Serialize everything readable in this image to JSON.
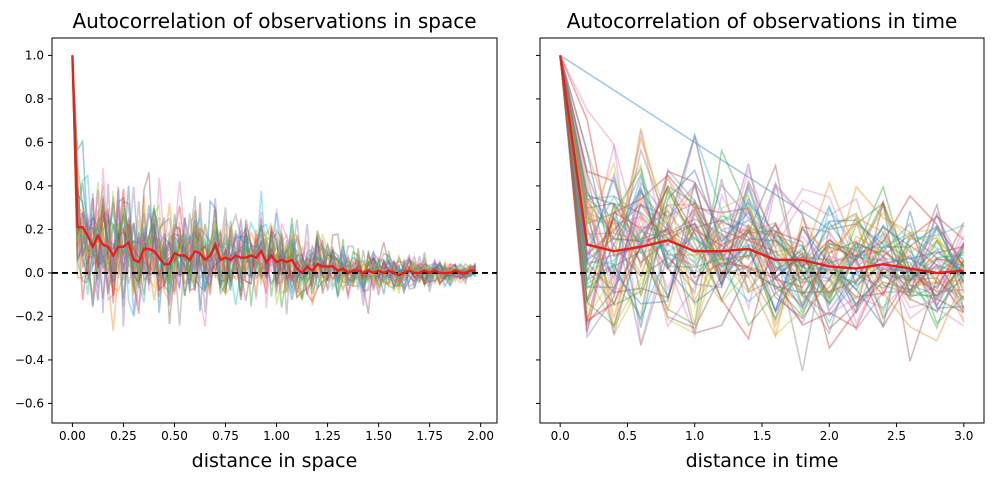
{
  "chart_data": [
    {
      "type": "line",
      "title": "Autocorrelation of observations in space",
      "xlabel": "distance in space",
      "ylabel": "",
      "xlim": [
        -0.1,
        2.08
      ],
      "ylim": [
        -0.69,
        1.08
      ],
      "xticks": [
        "0.00",
        "0.25",
        "0.50",
        "0.75",
        "1.00",
        "1.25",
        "1.50",
        "1.75",
        "2.00"
      ],
      "yticks": [
        "1.0",
        "0.8",
        "0.6",
        "0.4",
        "0.2",
        "0.0",
        "−0.2",
        "−0.4",
        "−0.6"
      ],
      "reference_line_y": 0.0,
      "mean_series": {
        "name": "mean",
        "color": "#e8201a",
        "x": [
          0.0,
          0.025,
          0.05,
          0.075,
          0.1,
          0.125,
          0.15,
          0.175,
          0.2,
          0.225,
          0.25,
          0.275,
          0.3,
          0.325,
          0.35,
          0.375,
          0.4,
          0.425,
          0.45,
          0.475,
          0.5,
          0.525,
          0.55,
          0.575,
          0.6,
          0.625,
          0.65,
          0.675,
          0.7,
          0.725,
          0.75,
          0.775,
          0.8,
          0.825,
          0.85,
          0.875,
          0.9,
          0.925,
          0.95,
          0.975,
          1.0,
          1.025,
          1.05,
          1.075,
          1.1,
          1.125,
          1.15,
          1.175,
          1.2,
          1.225,
          1.25,
          1.275,
          1.3,
          1.325,
          1.35,
          1.375,
          1.4,
          1.425,
          1.45,
          1.475,
          1.5,
          1.525,
          1.55,
          1.575,
          1.6,
          1.625,
          1.65,
          1.675,
          1.7,
          1.725,
          1.75,
          1.775,
          1.8,
          1.825,
          1.85,
          1.875,
          1.9,
          1.925,
          1.95,
          1.975
        ],
        "values": [
          1.0,
          0.21,
          0.21,
          0.17,
          0.12,
          0.17,
          0.13,
          0.12,
          0.08,
          0.12,
          0.12,
          0.14,
          0.06,
          0.05,
          0.11,
          0.11,
          0.1,
          0.07,
          0.04,
          0.04,
          0.09,
          0.08,
          0.08,
          0.06,
          0.1,
          0.09,
          0.06,
          0.08,
          0.13,
          0.06,
          0.07,
          0.06,
          0.08,
          0.07,
          0.07,
          0.08,
          0.07,
          0.1,
          0.05,
          0.08,
          0.05,
          0.06,
          0.05,
          0.06,
          0.02,
          0.0,
          0.03,
          0.01,
          0.04,
          0.03,
          0.03,
          0.03,
          0.01,
          0.02,
          0.0,
          0.01,
          0.01,
          0.0,
          0.01,
          0.0,
          0.01,
          0.0,
          0.01,
          0.0,
          -0.01,
          0.0,
          0.01,
          0.0,
          0.0,
          0.01,
          0.0,
          0.01,
          0.0,
          0.0,
          0.0,
          0.01,
          0.0,
          0.0,
          0.01,
          0.01
        ]
      },
      "background_series_count": 30,
      "background_series_alpha": 0.4
    },
    {
      "type": "line",
      "title": "Autocorrelation of observations in time",
      "xlabel": "distance in time",
      "ylabel": "",
      "xlim": [
        -0.15,
        3.15
      ],
      "ylim": [
        -0.69,
        1.08
      ],
      "xticks": [
        "0.0",
        "0.5",
        "1.0",
        "1.5",
        "2.0",
        "2.5",
        "3.0"
      ],
      "yticks": [],
      "reference_line_y": 0.0,
      "mean_series": {
        "name": "mean",
        "color": "#e8201a",
        "x": [
          0.0,
          0.2,
          0.4,
          0.6,
          0.8,
          1.0,
          1.2,
          1.4,
          1.6,
          1.8,
          2.0,
          2.2,
          2.4,
          2.6,
          2.8,
          3.0
        ],
        "values": [
          1.0,
          0.13,
          0.1,
          0.12,
          0.15,
          0.1,
          0.1,
          0.11,
          0.06,
          0.06,
          0.03,
          0.02,
          0.04,
          0.02,
          0.0,
          0.01
        ]
      },
      "background_series_count": 60,
      "background_series_alpha": 0.4
    }
  ]
}
